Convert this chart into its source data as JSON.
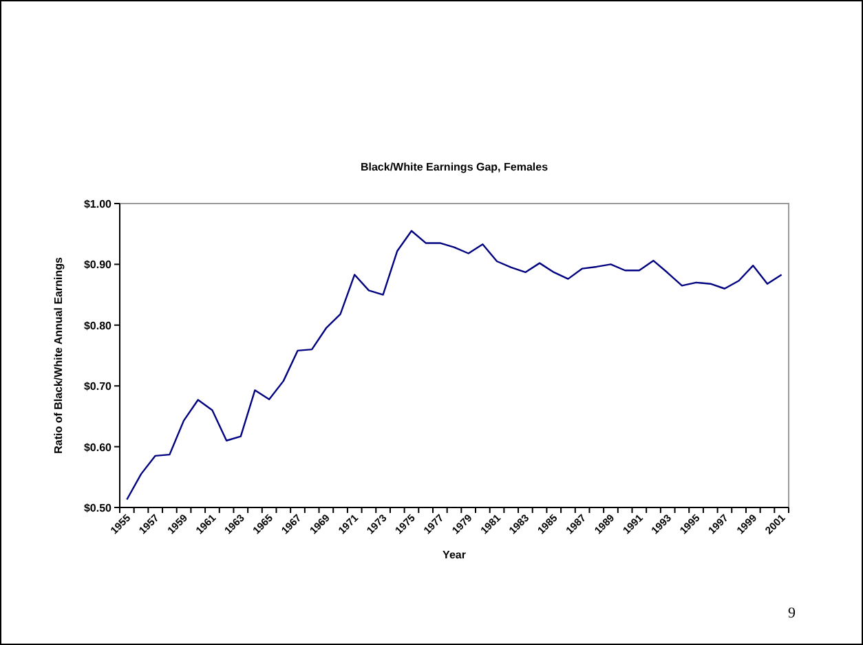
{
  "chart_data": {
    "type": "line",
    "title": "Black/White Earnings Gap, Females",
    "xlabel": "Year",
    "ylabel": "Ratio of Black/White Annual Earnings",
    "categories": [
      "1955",
      null,
      "1957",
      null,
      "1959",
      null,
      "1961",
      null,
      "1963",
      null,
      "1965",
      null,
      "1967",
      null,
      "1969",
      null,
      "1971",
      null,
      "1973",
      null,
      "1975",
      null,
      "1977",
      null,
      "1979",
      null,
      "1981",
      null,
      "1983",
      null,
      "1985",
      null,
      "1987",
      null,
      "1989",
      null,
      "1991",
      null,
      "1993",
      null,
      "1995",
      null,
      "1997",
      null,
      "1999",
      null,
      "2001"
    ],
    "series": [
      {
        "color": "#000080",
        "values": [
          0.513,
          0.555,
          0.585,
          0.587,
          0.643,
          0.677,
          0.66,
          0.61,
          0.617,
          0.693,
          0.678,
          0.708,
          0.758,
          0.76,
          0.795,
          0.818,
          0.883,
          0.857,
          0.85,
          0.922,
          0.955,
          0.935,
          0.935,
          0.928,
          0.918,
          0.933,
          0.905,
          0.895,
          0.887,
          0.902,
          0.887,
          0.876,
          0.893,
          0.896,
          0.9,
          0.89,
          0.89,
          0.906,
          0.886,
          0.865,
          0.87,
          0.868,
          0.86,
          0.873,
          0.898,
          0.868,
          0.883
        ]
      }
    ],
    "ylim": [
      0.5,
      1.0
    ],
    "yticks": [
      {
        "value": 0.5,
        "label": "$0.50"
      },
      {
        "value": 0.6,
        "label": "$0.60"
      },
      {
        "value": 0.7,
        "label": "$0.70"
      },
      {
        "value": 0.8,
        "label": "$0.80"
      },
      {
        "value": 0.9,
        "label": "$0.90"
      },
      {
        "value": 1.0,
        "label": "$1.00"
      }
    ],
    "marker": "none",
    "line_style": "solid",
    "annotations": [
      "9"
    ]
  }
}
